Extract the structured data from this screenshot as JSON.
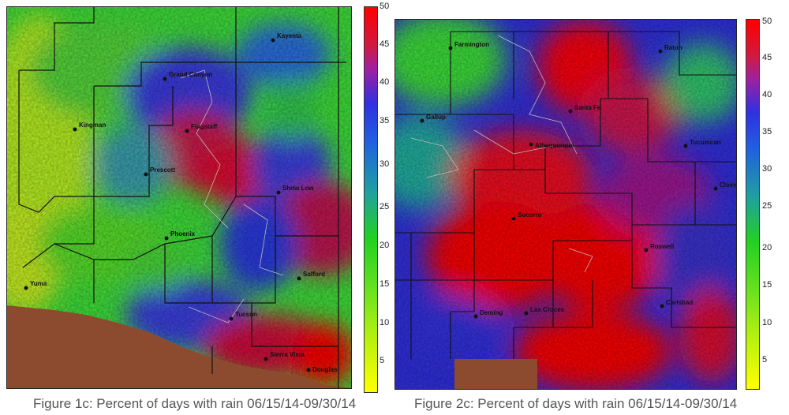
{
  "panels": [
    {
      "id": "az",
      "caption": "Figure 1c: Percent of days with rain 06/15/14-09/30/14",
      "cities": [
        {
          "name": "Kayenta"
        },
        {
          "name": "Grand Canyon"
        },
        {
          "name": "Flagstaff"
        },
        {
          "name": "Kingman"
        },
        {
          "name": "Prescott"
        },
        {
          "name": "Show Low"
        },
        {
          "name": "Phoenix"
        },
        {
          "name": "Safford"
        },
        {
          "name": "Yuma"
        },
        {
          "name": "Tucson"
        },
        {
          "name": "Sierra Vista"
        },
        {
          "name": "Douglas"
        }
      ]
    },
    {
      "id": "nm",
      "caption": "Figure 2c: Percent of days with rain 06/15/14-09/30/14",
      "cities": [
        {
          "name": "Farmington"
        },
        {
          "name": "Raton"
        },
        {
          "name": "Gallup"
        },
        {
          "name": "Santa Fe"
        },
        {
          "name": "Albuquerque"
        },
        {
          "name": "Tucumcari"
        },
        {
          "name": "Clovis"
        },
        {
          "name": "Socorro"
        },
        {
          "name": "Roswell"
        },
        {
          "name": "Deming"
        },
        {
          "name": "Las Cruces"
        },
        {
          "name": "Carlsbad"
        }
      ]
    }
  ],
  "colorbar": {
    "ticks": [
      "50",
      "45",
      "40",
      "35",
      "30",
      "25",
      "20",
      "15",
      "10",
      "5"
    ],
    "colors": {
      "c50": "#ff0000",
      "c42": "#cc1a66",
      "c35": "#2f2fe0",
      "c28": "#1f8fbf",
      "c20": "#22d022",
      "c10": "#7fe020",
      "c0": "#ffff00"
    }
  }
}
